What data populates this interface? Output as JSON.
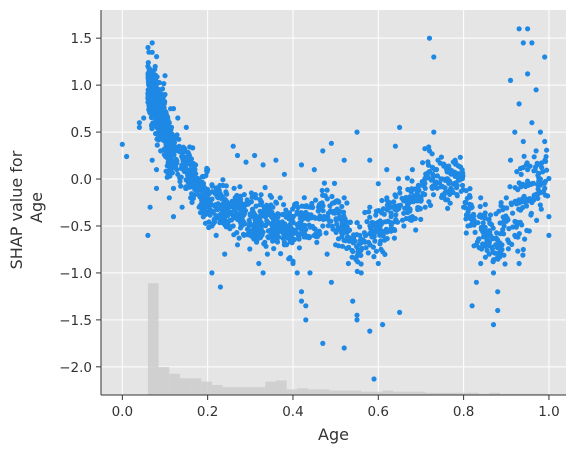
{
  "chart_data": {
    "type": "scatter",
    "title": "",
    "xlabel": "Age",
    "ylabel": [
      "SHAP value for",
      "Age"
    ],
    "xlim": [
      -0.05,
      1.04
    ],
    "ylim": [
      -2.3,
      1.8
    ],
    "x_ticks": [
      0.0,
      0.2,
      0.4,
      0.6,
      0.8,
      1.0
    ],
    "x_tick_labels": [
      "0.0",
      "0.2",
      "0.4",
      "0.6",
      "0.8",
      "1.0"
    ],
    "y_ticks": [
      1.5,
      1.0,
      0.5,
      0.0,
      -0.5,
      -1.0,
      -1.5,
      -2.0
    ],
    "y_tick_labels": [
      "1.5",
      "1.0",
      "0.5",
      "0.0",
      "−0.5",
      "−1.0",
      "−1.5",
      "−2.0"
    ],
    "grid": true,
    "colors": {
      "background": "#e5e5e5",
      "grid": "#ffffff",
      "points": "#1e88e5",
      "histogram": "#cccccc",
      "axis": "#333333"
    },
    "histogram": {
      "description": "feature value distribution (relative counts)",
      "bins": [
        {
          "x0": 0.06,
          "x1": 0.085,
          "count": 1.0
        },
        {
          "x0": 0.085,
          "x1": 0.11,
          "count": 0.25
        },
        {
          "x0": 0.11,
          "x1": 0.135,
          "count": 0.19
        },
        {
          "x0": 0.135,
          "x1": 0.16,
          "count": 0.15
        },
        {
          "x0": 0.16,
          "x1": 0.185,
          "count": 0.15
        },
        {
          "x0": 0.185,
          "x1": 0.21,
          "count": 0.12
        },
        {
          "x0": 0.21,
          "x1": 0.235,
          "count": 0.09
        },
        {
          "x0": 0.235,
          "x1": 0.26,
          "count": 0.07
        },
        {
          "x0": 0.26,
          "x1": 0.285,
          "count": 0.07
        },
        {
          "x0": 0.285,
          "x1": 0.31,
          "count": 0.07
        },
        {
          "x0": 0.31,
          "x1": 0.335,
          "count": 0.07
        },
        {
          "x0": 0.335,
          "x1": 0.36,
          "count": 0.12
        },
        {
          "x0": 0.36,
          "x1": 0.385,
          "count": 0.13
        },
        {
          "x0": 0.385,
          "x1": 0.41,
          "count": 0.05
        },
        {
          "x0": 0.41,
          "x1": 0.435,
          "count": 0.06
        },
        {
          "x0": 0.435,
          "x1": 0.46,
          "count": 0.05
        },
        {
          "x0": 0.46,
          "x1": 0.485,
          "count": 0.05
        },
        {
          "x0": 0.485,
          "x1": 0.51,
          "count": 0.04
        },
        {
          "x0": 0.51,
          "x1": 0.535,
          "count": 0.04
        },
        {
          "x0": 0.535,
          "x1": 0.56,
          "count": 0.04
        },
        {
          "x0": 0.56,
          "x1": 0.585,
          "count": 0.03
        },
        {
          "x0": 0.585,
          "x1": 0.61,
          "count": 0.03
        },
        {
          "x0": 0.61,
          "x1": 0.635,
          "count": 0.04
        },
        {
          "x0": 0.635,
          "x1": 0.66,
          "count": 0.03
        },
        {
          "x0": 0.66,
          "x1": 0.685,
          "count": 0.03
        },
        {
          "x0": 0.685,
          "x1": 0.71,
          "count": 0.03
        },
        {
          "x0": 0.71,
          "x1": 0.735,
          "count": 0.02
        },
        {
          "x0": 0.735,
          "x1": 0.76,
          "count": 0.02
        },
        {
          "x0": 0.76,
          "x1": 0.785,
          "count": 0.02
        },
        {
          "x0": 0.785,
          "x1": 0.81,
          "count": 0.02
        },
        {
          "x0": 0.81,
          "x1": 0.835,
          "count": 0.02
        },
        {
          "x0": 0.835,
          "x1": 0.86,
          "count": 0.01
        },
        {
          "x0": 0.86,
          "x1": 0.885,
          "count": 0.02
        },
        {
          "x0": 0.885,
          "x1": 0.91,
          "count": 0.01
        },
        {
          "x0": 0.91,
          "x1": 0.935,
          "count": 0.01
        },
        {
          "x0": 0.935,
          "x1": 0.96,
          "count": 0.01
        },
        {
          "x0": 0.96,
          "x1": 0.985,
          "count": 0.01
        },
        {
          "x0": 0.985,
          "x1": 1.0,
          "count": 0.01
        }
      ]
    },
    "series": [
      {
        "points": [
          [
            0.0,
            0.37
          ],
          [
            0.01,
            0.24
          ],
          [
            0.04,
            0.6
          ],
          [
            0.04,
            0.55
          ],
          [
            0.05,
            0.65
          ],
          [
            0.06,
            1.2
          ],
          [
            0.065,
            1.05
          ],
          [
            0.07,
            1.45
          ],
          [
            0.07,
            1.35
          ],
          [
            0.072,
            1.1
          ],
          [
            0.075,
            0.95
          ],
          [
            0.075,
            0.8
          ],
          [
            0.08,
            0.9
          ],
          [
            0.08,
            0.7
          ],
          [
            0.085,
            0.5
          ],
          [
            0.09,
            0.85
          ],
          [
            0.09,
            0.6
          ],
          [
            0.1,
            0.72
          ],
          [
            0.1,
            1.1
          ],
          [
            0.105,
            0.45
          ],
          [
            0.06,
            -0.6
          ],
          [
            0.065,
            -0.3
          ],
          [
            0.07,
            0.2
          ],
          [
            0.08,
            0.1
          ],
          [
            0.09,
            0.3
          ],
          [
            0.11,
            -0.2
          ],
          [
            0.12,
            -0.1
          ],
          [
            0.13,
            0.05
          ],
          [
            0.12,
            -0.4
          ],
          [
            0.14,
            -0.3
          ],
          [
            0.15,
            -0.1
          ],
          [
            0.16,
            -0.2
          ],
          [
            0.17,
            0.1
          ],
          [
            0.18,
            -0.3
          ],
          [
            0.19,
            -0.35
          ],
          [
            0.2,
            -0.2
          ],
          [
            0.21,
            -0.5
          ],
          [
            0.22,
            -0.6
          ],
          [
            0.23,
            -0.4
          ],
          [
            0.24,
            -0.8
          ],
          [
            0.21,
            -1.0
          ],
          [
            0.23,
            -1.15
          ],
          [
            0.25,
            -0.3
          ],
          [
            0.26,
            -0.5
          ],
          [
            0.27,
            -0.7
          ],
          [
            0.28,
            -0.3
          ],
          [
            0.3,
            -0.6
          ],
          [
            0.31,
            -0.5
          ],
          [
            0.32,
            -0.9
          ],
          [
            0.33,
            -1.0
          ],
          [
            0.34,
            -0.8
          ],
          [
            0.35,
            -0.4
          ],
          [
            0.36,
            -0.6
          ],
          [
            0.37,
            -0.2
          ],
          [
            0.38,
            -0.7
          ],
          [
            0.39,
            -0.85
          ],
          [
            0.4,
            -0.9
          ],
          [
            0.41,
            -1.0
          ],
          [
            0.42,
            -1.2
          ],
          [
            0.43,
            -1.35
          ],
          [
            0.44,
            -1.0
          ],
          [
            0.45,
            -0.6
          ],
          [
            0.46,
            -0.3
          ],
          [
            0.47,
            -0.5
          ],
          [
            0.48,
            -0.8
          ],
          [
            0.49,
            -1.1
          ],
          [
            0.5,
            -0.7
          ],
          [
            0.51,
            -0.4
          ],
          [
            0.52,
            -0.2
          ],
          [
            0.53,
            -0.9
          ],
          [
            0.54,
            -1.3
          ],
          [
            0.55,
            -1.5
          ],
          [
            0.56,
            -1.0
          ],
          [
            0.57,
            -0.6
          ],
          [
            0.58,
            -0.3
          ],
          [
            0.59,
            -0.5
          ],
          [
            0.6,
            -0.9
          ],
          [
            0.61,
            -0.6
          ],
          [
            0.62,
            -0.2
          ],
          [
            0.63,
            -0.4
          ],
          [
            0.64,
            -0.3
          ],
          [
            0.65,
            -0.1
          ],
          [
            0.66,
            -0.5
          ],
          [
            0.67,
            -0.3
          ],
          [
            0.68,
            -0.4
          ],
          [
            0.7,
            -0.2
          ],
          [
            0.71,
            -0.1
          ],
          [
            0.72,
            0.3
          ],
          [
            0.73,
            0.5
          ],
          [
            0.74,
            0.2
          ],
          [
            0.75,
            0.0
          ],
          [
            0.76,
            0.1
          ],
          [
            0.77,
            -0.1
          ],
          [
            0.78,
            0.2
          ],
          [
            0.79,
            0.0
          ],
          [
            0.8,
            -0.3
          ],
          [
            0.81,
            -0.5
          ],
          [
            0.82,
            -0.3
          ],
          [
            0.83,
            -0.7
          ],
          [
            0.84,
            -0.9
          ],
          [
            0.85,
            -0.6
          ],
          [
            0.86,
            -0.8
          ],
          [
            0.87,
            -1.0
          ],
          [
            0.88,
            -1.2
          ],
          [
            0.89,
            -0.7
          ],
          [
            0.9,
            -0.2
          ],
          [
            0.91,
            0.2
          ],
          [
            0.92,
            0.5
          ],
          [
            0.93,
            0.8
          ],
          [
            0.94,
            0.4
          ],
          [
            0.95,
            0.1
          ],
          [
            0.96,
            0.6
          ],
          [
            0.97,
            0.3
          ],
          [
            0.98,
            0.5
          ],
          [
            0.99,
            0.4
          ],
          [
            0.72,
            1.5
          ],
          [
            0.73,
            1.3
          ],
          [
            0.93,
            1.6
          ],
          [
            0.95,
            1.6
          ],
          [
            0.94,
            1.45
          ],
          [
            0.96,
            1.45
          ],
          [
            0.95,
            1.12
          ],
          [
            0.91,
            1.05
          ],
          [
            0.99,
            1.3
          ],
          [
            0.97,
            0.95
          ],
          [
            0.26,
            0.35
          ],
          [
            0.27,
            0.25
          ],
          [
            0.29,
            0.18
          ],
          [
            0.31,
            0.25
          ],
          [
            0.33,
            0.15
          ],
          [
            0.36,
            0.2
          ],
          [
            0.38,
            0.05
          ],
          [
            0.42,
            0.15
          ],
          [
            0.45,
            0.1
          ],
          [
            0.47,
            0.3
          ],
          [
            0.49,
            0.38
          ],
          [
            0.52,
            0.2
          ],
          [
            0.55,
            0.5
          ],
          [
            0.58,
            0.2
          ],
          [
            0.6,
            -0.05
          ],
          [
            0.62,
            0.1
          ],
          [
            0.64,
            0.35
          ],
          [
            0.65,
            0.55
          ],
          [
            0.68,
            0.1
          ],
          [
            0.71,
            -0.3
          ],
          [
            0.47,
            -1.75
          ],
          [
            0.52,
            -1.8
          ],
          [
            0.59,
            -2.13
          ],
          [
            0.58,
            -1.62
          ],
          [
            0.61,
            -1.55
          ],
          [
            0.65,
            -1.42
          ],
          [
            0.55,
            -1.45
          ],
          [
            0.43,
            -1.5
          ],
          [
            0.42,
            -1.3
          ],
          [
            0.87,
            -1.55
          ],
          [
            0.88,
            -1.4
          ],
          [
            0.82,
            -1.35
          ],
          [
            0.83,
            -1.1
          ],
          [
            0.84,
            -0.2
          ],
          [
            0.85,
            -0.4
          ],
          [
            0.86,
            -0.55
          ],
          [
            0.88,
            -0.65
          ],
          [
            0.89,
            -0.75
          ],
          [
            0.9,
            -0.45
          ],
          [
            0.92,
            -0.6
          ],
          [
            0.93,
            -0.9
          ],
          [
            0.94,
            -0.75
          ],
          [
            0.96,
            -0.25
          ],
          [
            0.98,
            0.0
          ],
          [
            1.0,
            -0.4
          ],
          [
            1.0,
            -0.6
          ],
          [
            0.99,
            -0.1
          ],
          [
            0.15,
            0.55
          ],
          [
            0.13,
            0.65
          ],
          [
            0.12,
            0.75
          ],
          [
            0.14,
            0.3
          ],
          [
            0.16,
            0.15
          ],
          [
            0.18,
            0.0
          ],
          [
            0.2,
            0.1
          ],
          [
            0.22,
            -0.1
          ],
          [
            0.1,
            0.9
          ],
          [
            0.1,
            0.55
          ],
          [
            0.11,
            0.6
          ],
          [
            0.12,
            0.35
          ],
          [
            0.08,
            -0.1
          ]
        ]
      }
    ]
  }
}
